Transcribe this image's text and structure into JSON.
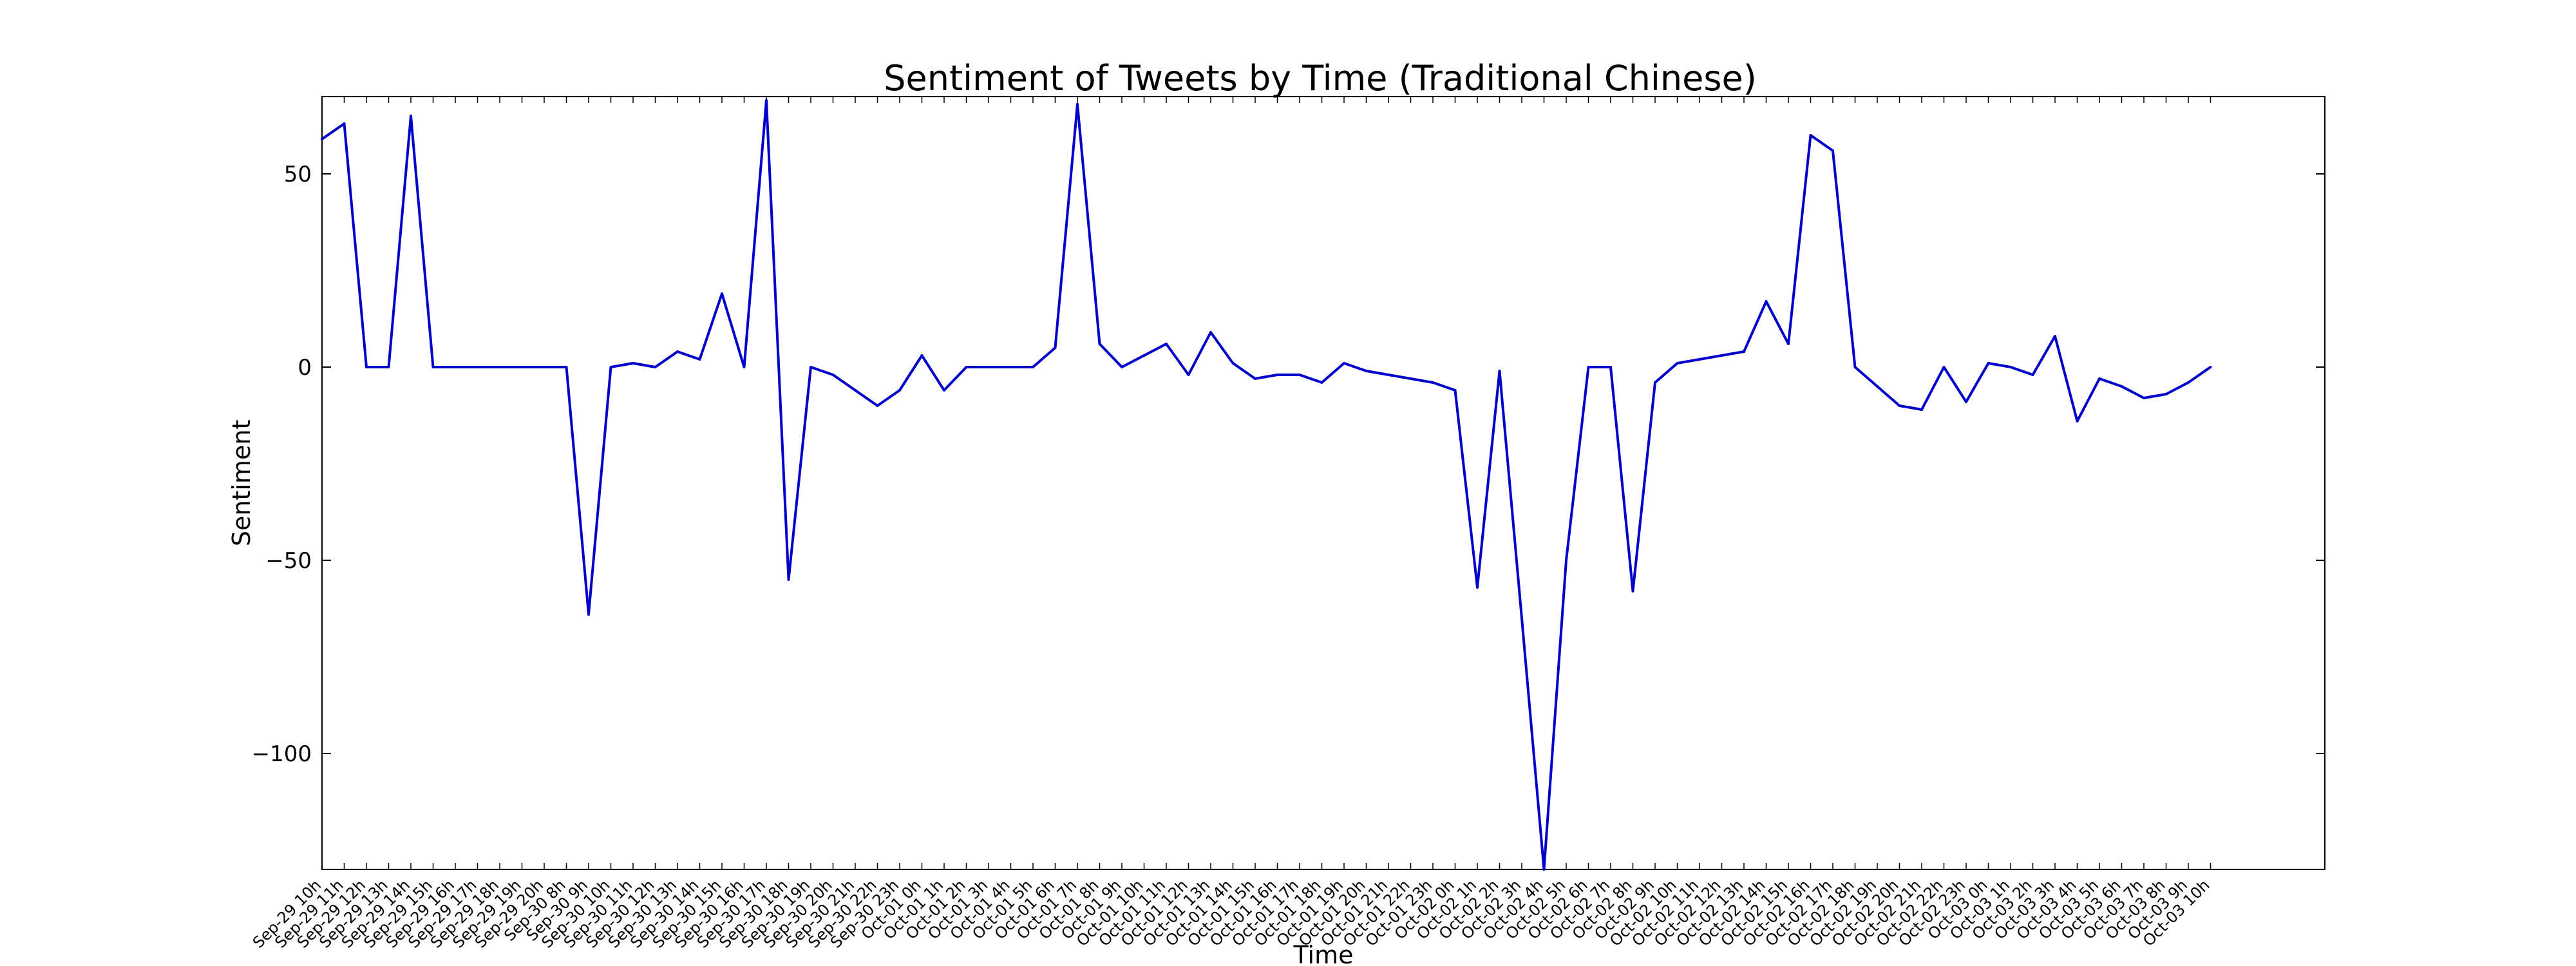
{
  "chart_data": {
    "type": "line",
    "title": "Sentiment of Tweets by Time (Traditional Chinese)",
    "xlabel": "Time",
    "ylabel": "Sentiment",
    "ylim": [
      -130,
      70
    ],
    "yticks": [
      50,
      0,
      -50,
      -100
    ],
    "ytick_labels": [
      "50",
      "0",
      "−50",
      "−100"
    ],
    "grid": false,
    "legend": "none",
    "line_color": "#0000cc",
    "tick_labels": [
      "Sep-29 10h",
      "Sep-29 11h",
      "Sep-29 12h",
      "Sep-29 13h",
      "Sep-29 14h",
      "Sep-29 15h",
      "Sep-29 16h",
      "Sep-29 17h",
      "Sep-29 18h",
      "Sep-29 19h",
      "Sep-29 20h",
      "Sep-30 8h",
      "Sep-30 9h",
      "Sep-30 10h",
      "Sep-30 11h",
      "Sep-30 12h",
      "Sep-30 13h",
      "Sep-30 14h",
      "Sep-30 15h",
      "Sep-30 16h",
      "Sep-30 17h",
      "Sep-30 18h",
      "Sep-30 19h",
      "Sep-30 20h",
      "Sep-30 21h",
      "Sep-30 22h",
      "Sep-30 23h",
      "Oct-01 0h",
      "Oct-01 1h",
      "Oct-01 2h",
      "Oct-01 3h",
      "Oct-01 4h",
      "Oct-01 5h",
      "Oct-01 6h",
      "Oct-01 7h",
      "Oct-01 8h",
      "Oct-01 9h",
      "Oct-01 10h",
      "Oct-01 11h",
      "Oct-01 12h",
      "Oct-01 13h",
      "Oct-01 14h",
      "Oct-01 15h",
      "Oct-01 16h",
      "Oct-01 17h",
      "Oct-01 18h",
      "Oct-01 19h",
      "Oct-01 20h",
      "Oct-01 21h",
      "Oct-01 22h",
      "Oct-01 23h",
      "Oct-02 0h",
      "Oct-02 1h",
      "Oct-02 2h",
      "Oct-02 3h",
      "Oct-02 4h",
      "Oct-02 5h",
      "Oct-02 6h",
      "Oct-02 7h",
      "Oct-02 8h",
      "Oct-02 9h",
      "Oct-02 10h",
      "Oct-02 11h",
      "Oct-02 12h",
      "Oct-02 13h",
      "Oct-02 14h",
      "Oct-02 15h",
      "Oct-02 16h",
      "Oct-02 17h",
      "Oct-02 18h",
      "Oct-02 19h",
      "Oct-02 20h",
      "Oct-02 21h",
      "Oct-02 22h",
      "Oct-02 23h",
      "Oct-03 0h",
      "Oct-03 1h",
      "Oct-03 2h",
      "Oct-03 3h",
      "Oct-03 4h",
      "Oct-03 5h",
      "Oct-03 6h",
      "Oct-03 7h",
      "Oct-03 8h",
      "Oct-03 9h",
      "Oct-03 10h"
    ],
    "series": [
      {
        "values": [
          59,
          63,
          0,
          0,
          65,
          0,
          0,
          0,
          0,
          0,
          0,
          0,
          -64,
          0,
          1,
          0,
          4,
          2,
          19,
          0,
          69,
          -55,
          0,
          -2,
          -6,
          -10,
          -6,
          3,
          -6,
          0,
          0,
          0,
          0,
          5,
          68,
          6,
          0,
          3,
          6,
          -2,
          9,
          1,
          -3,
          -2,
          -2,
          -4,
          1,
          -1,
          -2,
          -3,
          -4,
          -6,
          -57,
          -1,
          -65,
          -130,
          -50,
          0,
          0,
          -58,
          -4,
          1,
          2,
          3,
          4,
          17,
          6,
          60,
          56,
          0,
          -5,
          -10,
          -11,
          0,
          -9,
          1,
          0,
          -2,
          8,
          -14,
          -3,
          -5,
          -8,
          -7,
          -4,
          0
        ]
      }
    ]
  }
}
